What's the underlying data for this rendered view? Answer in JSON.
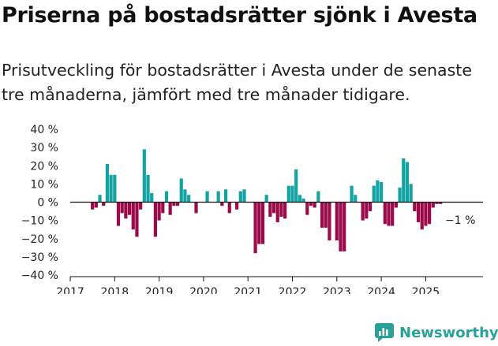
{
  "title": "Priserna på bostadsrätter sjönk i Avesta",
  "subtitle": "Prisutveckling för bostadsrätter i Avesta under de senaste tre månaderna, jämfört med tre månader tidigare.",
  "brand": {
    "name": "Newsworthy",
    "icon": "newsworthy-logo-icon",
    "color": "#2aa198"
  },
  "colors": {
    "positive": "#13a3a3",
    "negative": "#9b0a4b",
    "axis": "#111111",
    "zero_line": "#111111"
  },
  "chart_data": {
    "type": "bar",
    "title": "Priserna på bostadsrätter sjönk i Avesta",
    "xlabel": "",
    "ylabel": "",
    "ylim": [
      -40,
      40
    ],
    "yticks": [
      40,
      30,
      20,
      10,
      0,
      -10,
      -20,
      -30,
      -40
    ],
    "ytick_labels": [
      "40 %",
      "30 %",
      "20 %",
      "10 %",
      "0 %",
      "−10 %",
      "−20 %",
      "−30 %",
      "−40 %"
    ],
    "xlim": [
      2017.0,
      2026.0
    ],
    "xticks": [
      2017,
      2018,
      2019,
      2020,
      2021,
      2022,
      2023,
      2024,
      2025
    ],
    "xtick_labels": [
      "2017",
      "2018",
      "2019",
      "2020",
      "2021",
      "2022",
      "2023",
      "2024",
      "2025"
    ],
    "start": 2017.5,
    "step": 0.0833333,
    "values": [
      -4,
      -3,
      4,
      -2,
      21,
      15,
      15,
      -13,
      -6,
      -9,
      -7,
      -15,
      -19,
      -4,
      29,
      15,
      5,
      -19,
      -10,
      -6,
      6,
      -7,
      -2,
      -2,
      13,
      7,
      4,
      0,
      -6,
      0,
      0,
      6,
      0,
      0,
      6,
      -2,
      7,
      -6,
      0,
      -4,
      6,
      7,
      0,
      0,
      -28,
      -23,
      -23,
      4,
      -8,
      -6,
      -11,
      -8,
      -9,
      9,
      9,
      18,
      4,
      2,
      -7,
      -2,
      -3,
      6,
      -14,
      -14,
      -21,
      0,
      -21,
      -27,
      -27,
      0,
      9,
      4,
      0,
      -10,
      -9,
      -5,
      9,
      12,
      11,
      -12,
      -13,
      -13,
      -3,
      8,
      24,
      22,
      10,
      -5,
      -11,
      -15,
      -13,
      -12,
      -3,
      -1,
      -1
    ],
    "annotation": {
      "text": "−1 %",
      "value": -1
    }
  }
}
